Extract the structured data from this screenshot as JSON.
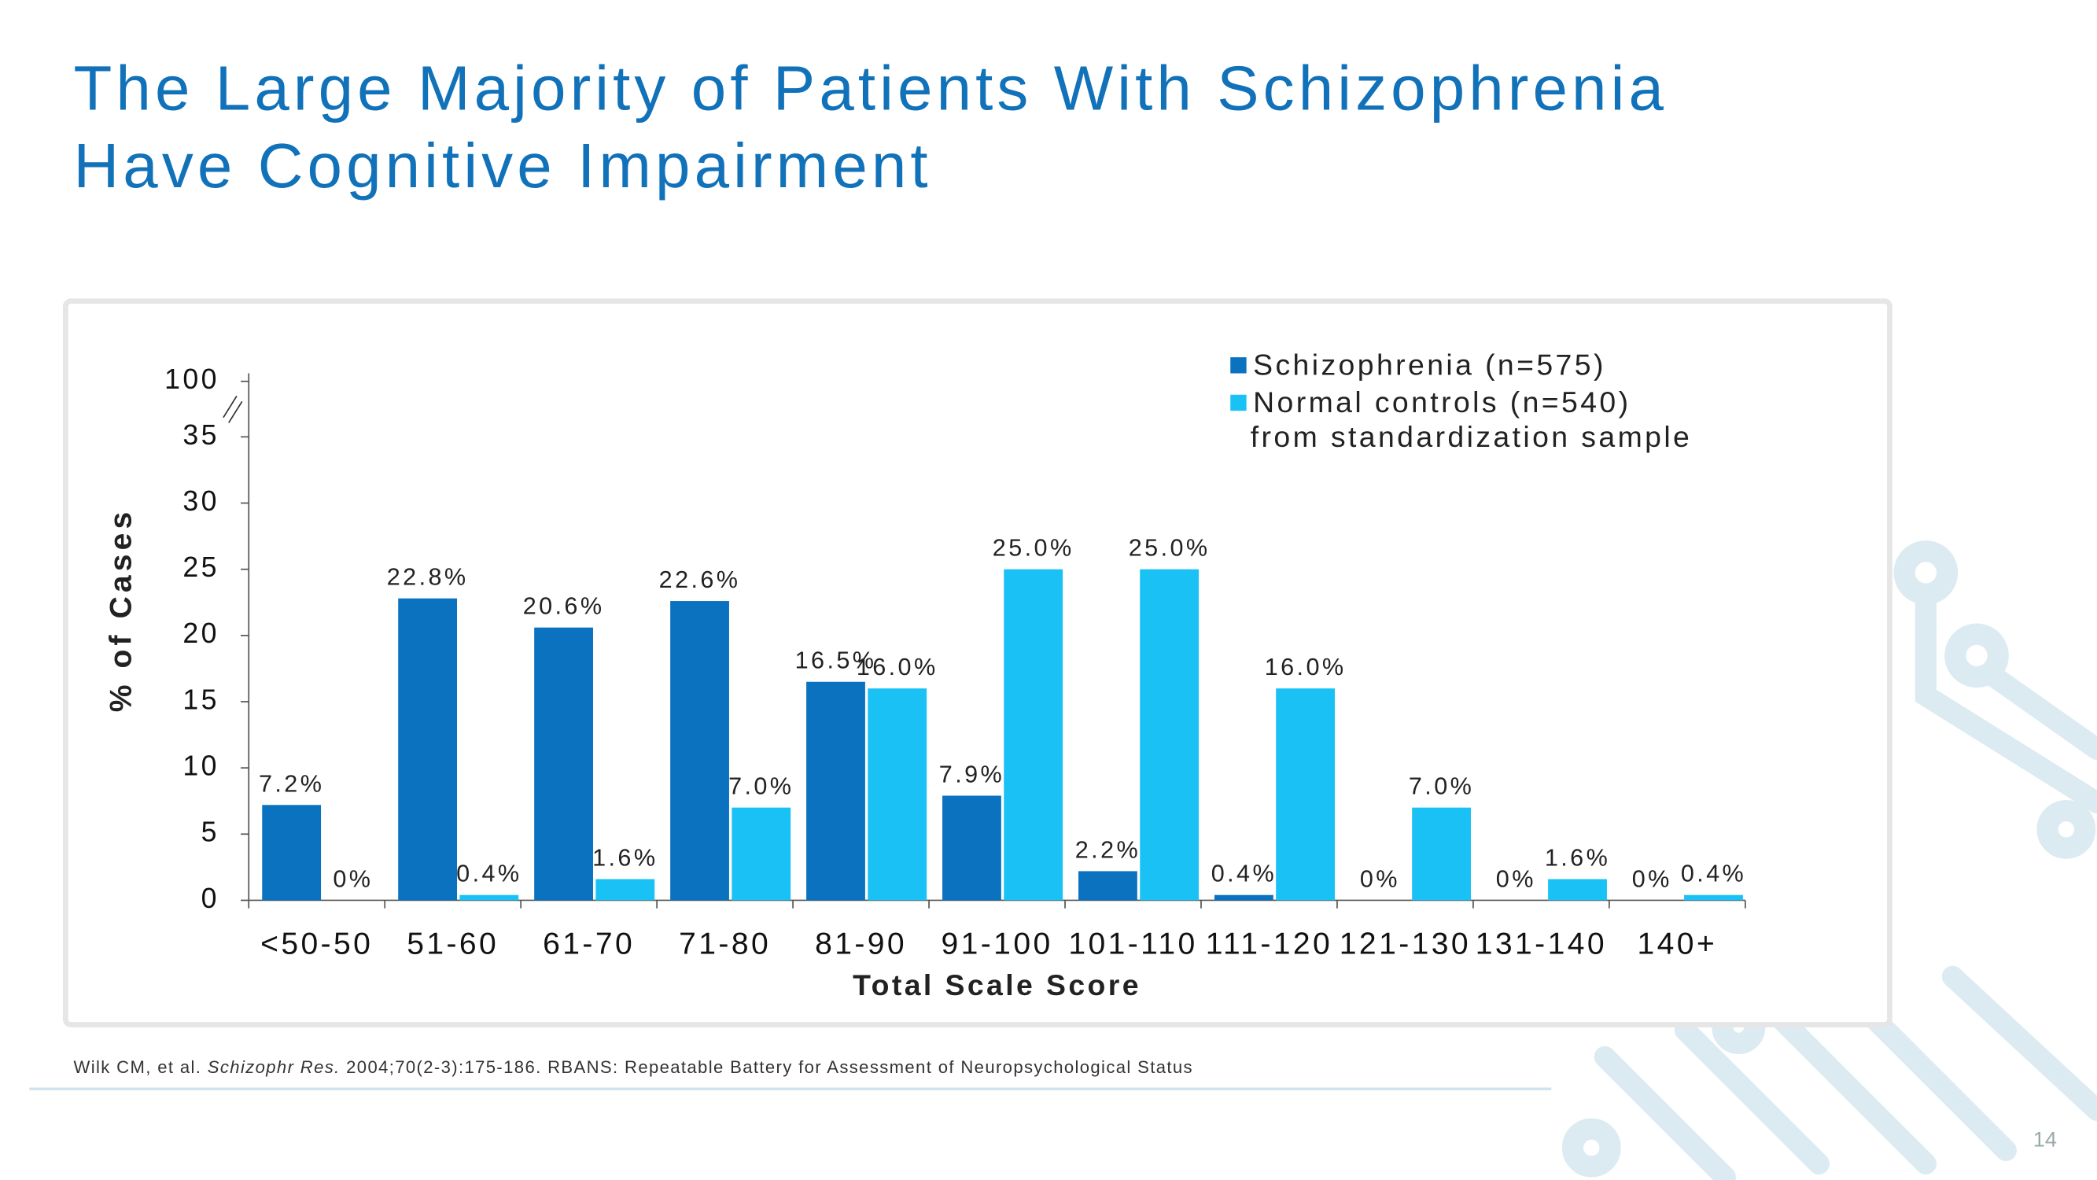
{
  "slide": {
    "title_lines": [
      "The Large Majority of Patients With Schizophrenia",
      "Have Cognitive Impairment"
    ],
    "footnote": [
      "Wilk CM, et al. ",
      "Schizophr Res.",
      " 2004;70(2-3):175-186. RBANS: Repeatable Battery for Assessment of Neuropsychological Status"
    ],
    "page_number": "14"
  },
  "chart_data": {
    "type": "bar",
    "x_label": "Total Scale Score",
    "y_label": "% of Cases",
    "categories": [
      "<50-50",
      "51-60",
      "61-70",
      "71-80",
      "81-90",
      "91-100",
      "101-110",
      "111-120",
      "121-130",
      "131-140",
      "140+"
    ],
    "series": [
      {
        "name": "Schizophrenia (n=575)",
        "color": "#0a72bf",
        "values": [
          7.2,
          22.8,
          20.6,
          22.6,
          16.5,
          7.9,
          2.2,
          0.4,
          0,
          0,
          0
        ],
        "value_labels": [
          "7.2%",
          "22.8%",
          "20.6%",
          "22.6%",
          "16.5%",
          "7.9%",
          "2.2%",
          "0.4%",
          "0%",
          "0%",
          "0%"
        ]
      },
      {
        "name": "Normal controls (n=540)",
        "color": "#1ac1f5",
        "values": [
          0,
          0.4,
          1.6,
          7.0,
          16.0,
          25.0,
          25.0,
          16.0,
          7.0,
          1.6,
          0.4
        ],
        "value_labels": [
          "0%",
          "0.4%",
          "1.6%",
          "7.0%",
          "16.0%",
          "25.0%",
          "25.0%",
          "16.0%",
          "7.0%",
          "1.6%",
          "0.4%"
        ]
      }
    ],
    "legend_note": "from standardization sample",
    "legend_position": "top-right",
    "ylim": [
      0,
      100
    ],
    "ybreak": [
      35,
      100
    ],
    "yticks": [
      0,
      5,
      10,
      15,
      20,
      25,
      30,
      35,
      100
    ],
    "grid": false
  }
}
